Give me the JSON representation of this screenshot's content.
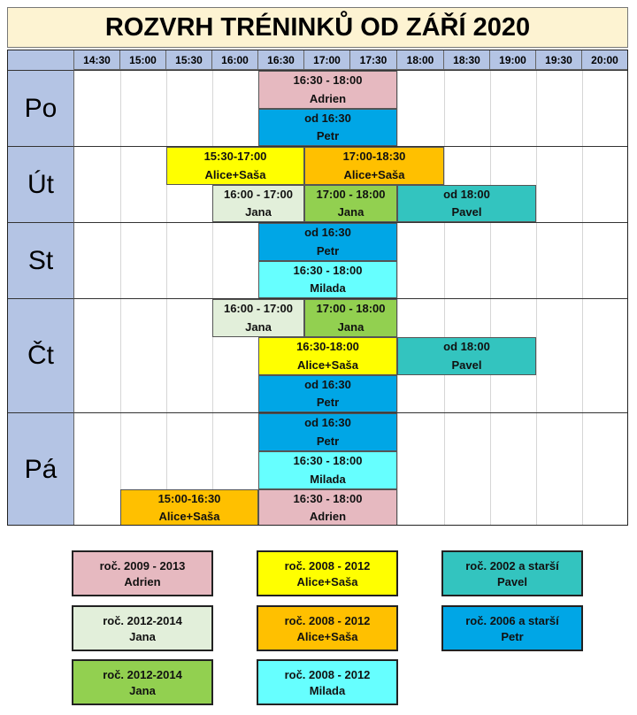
{
  "title": "ROZVRH TRÉNINKŮ OD ZÁŘÍ 2020",
  "colors": {
    "pink": "#e6b9c0",
    "yellow": "#ffff00",
    "orange": "#ffc000",
    "lightgreen": "#e2efda",
    "green": "#92d050",
    "teal": "#33c4bf",
    "blue": "#00a6e6",
    "cyan": "#66ffff"
  },
  "times": [
    "14:30",
    "15:00",
    "15:30",
    "16:00",
    "16:30",
    "17:00",
    "17:30",
    "18:00",
    "18:30",
    "19:00",
    "19:30",
    "20:00"
  ],
  "days": [
    "Po",
    "Út",
    "St",
    "Čt",
    "Pá"
  ],
  "blocks": [
    {
      "label": "16:30 - 18:00",
      "coach": "Adrien",
      "color": "pink"
    },
    {
      "label": "od 16:30",
      "coach": "Petr",
      "color": "blue"
    },
    {
      "label": "15:30-17:00",
      "coach": "Alice+Saša",
      "color": "yellow"
    },
    {
      "label": "17:00-18:30",
      "coach": "Alice+Saša",
      "color": "orange"
    },
    {
      "label": "16:00 - 17:00",
      "coach": "Jana",
      "color": "lightgreen"
    },
    {
      "label": "17:00 - 18:00",
      "coach": "Jana",
      "color": "green"
    },
    {
      "label": "od 18:00",
      "coach": "Pavel",
      "color": "teal"
    },
    {
      "label": "od 16:30",
      "coach": "Petr",
      "color": "blue"
    },
    {
      "label": "16:30 - 18:00",
      "coach": "Milada",
      "color": "cyan"
    },
    {
      "label": "16:00 - 17:00",
      "coach": "Jana",
      "color": "lightgreen"
    },
    {
      "label": "17:00 - 18:00",
      "coach": "Jana",
      "color": "green"
    },
    {
      "label": "16:30-18:00",
      "coach": "Alice+Saša",
      "color": "yellow"
    },
    {
      "label": "od 18:00",
      "coach": "Pavel",
      "color": "teal"
    },
    {
      "label": "od 16:30",
      "coach": "Petr",
      "color": "blue"
    },
    {
      "label": "od 16:30",
      "coach": "Petr",
      "color": "blue"
    },
    {
      "label": "16:30 - 18:00",
      "coach": "Milada",
      "color": "cyan"
    },
    {
      "label": "15:00-16:30",
      "coach": "Alice+Saša",
      "color": "orange"
    },
    {
      "label": "16:30 - 18:00",
      "coach": "Adrien",
      "color": "pink"
    }
  ],
  "legend": [
    {
      "years": "roč. 2009 - 2013",
      "coach": "Adrien",
      "color": "pink"
    },
    {
      "years": "roč. 2008 - 2012",
      "coach": "Alice+Saša",
      "color": "yellow"
    },
    {
      "years": "roč. 2002 a starší",
      "coach": "Pavel",
      "color": "teal"
    },
    {
      "years": "roč. 2012-2014",
      "coach": "Jana",
      "color": "lightgreen"
    },
    {
      "years": "roč. 2008 - 2012",
      "coach": "Alice+Saša",
      "color": "orange"
    },
    {
      "years": "roč. 2006 a starší",
      "coach": "Petr",
      "color": "blue"
    },
    {
      "years": "roč. 2012-2014",
      "coach": "Jana",
      "color": "green"
    },
    {
      "years": "roč. 2008 - 2012",
      "coach": "Milada",
      "color": "cyan"
    }
  ]
}
